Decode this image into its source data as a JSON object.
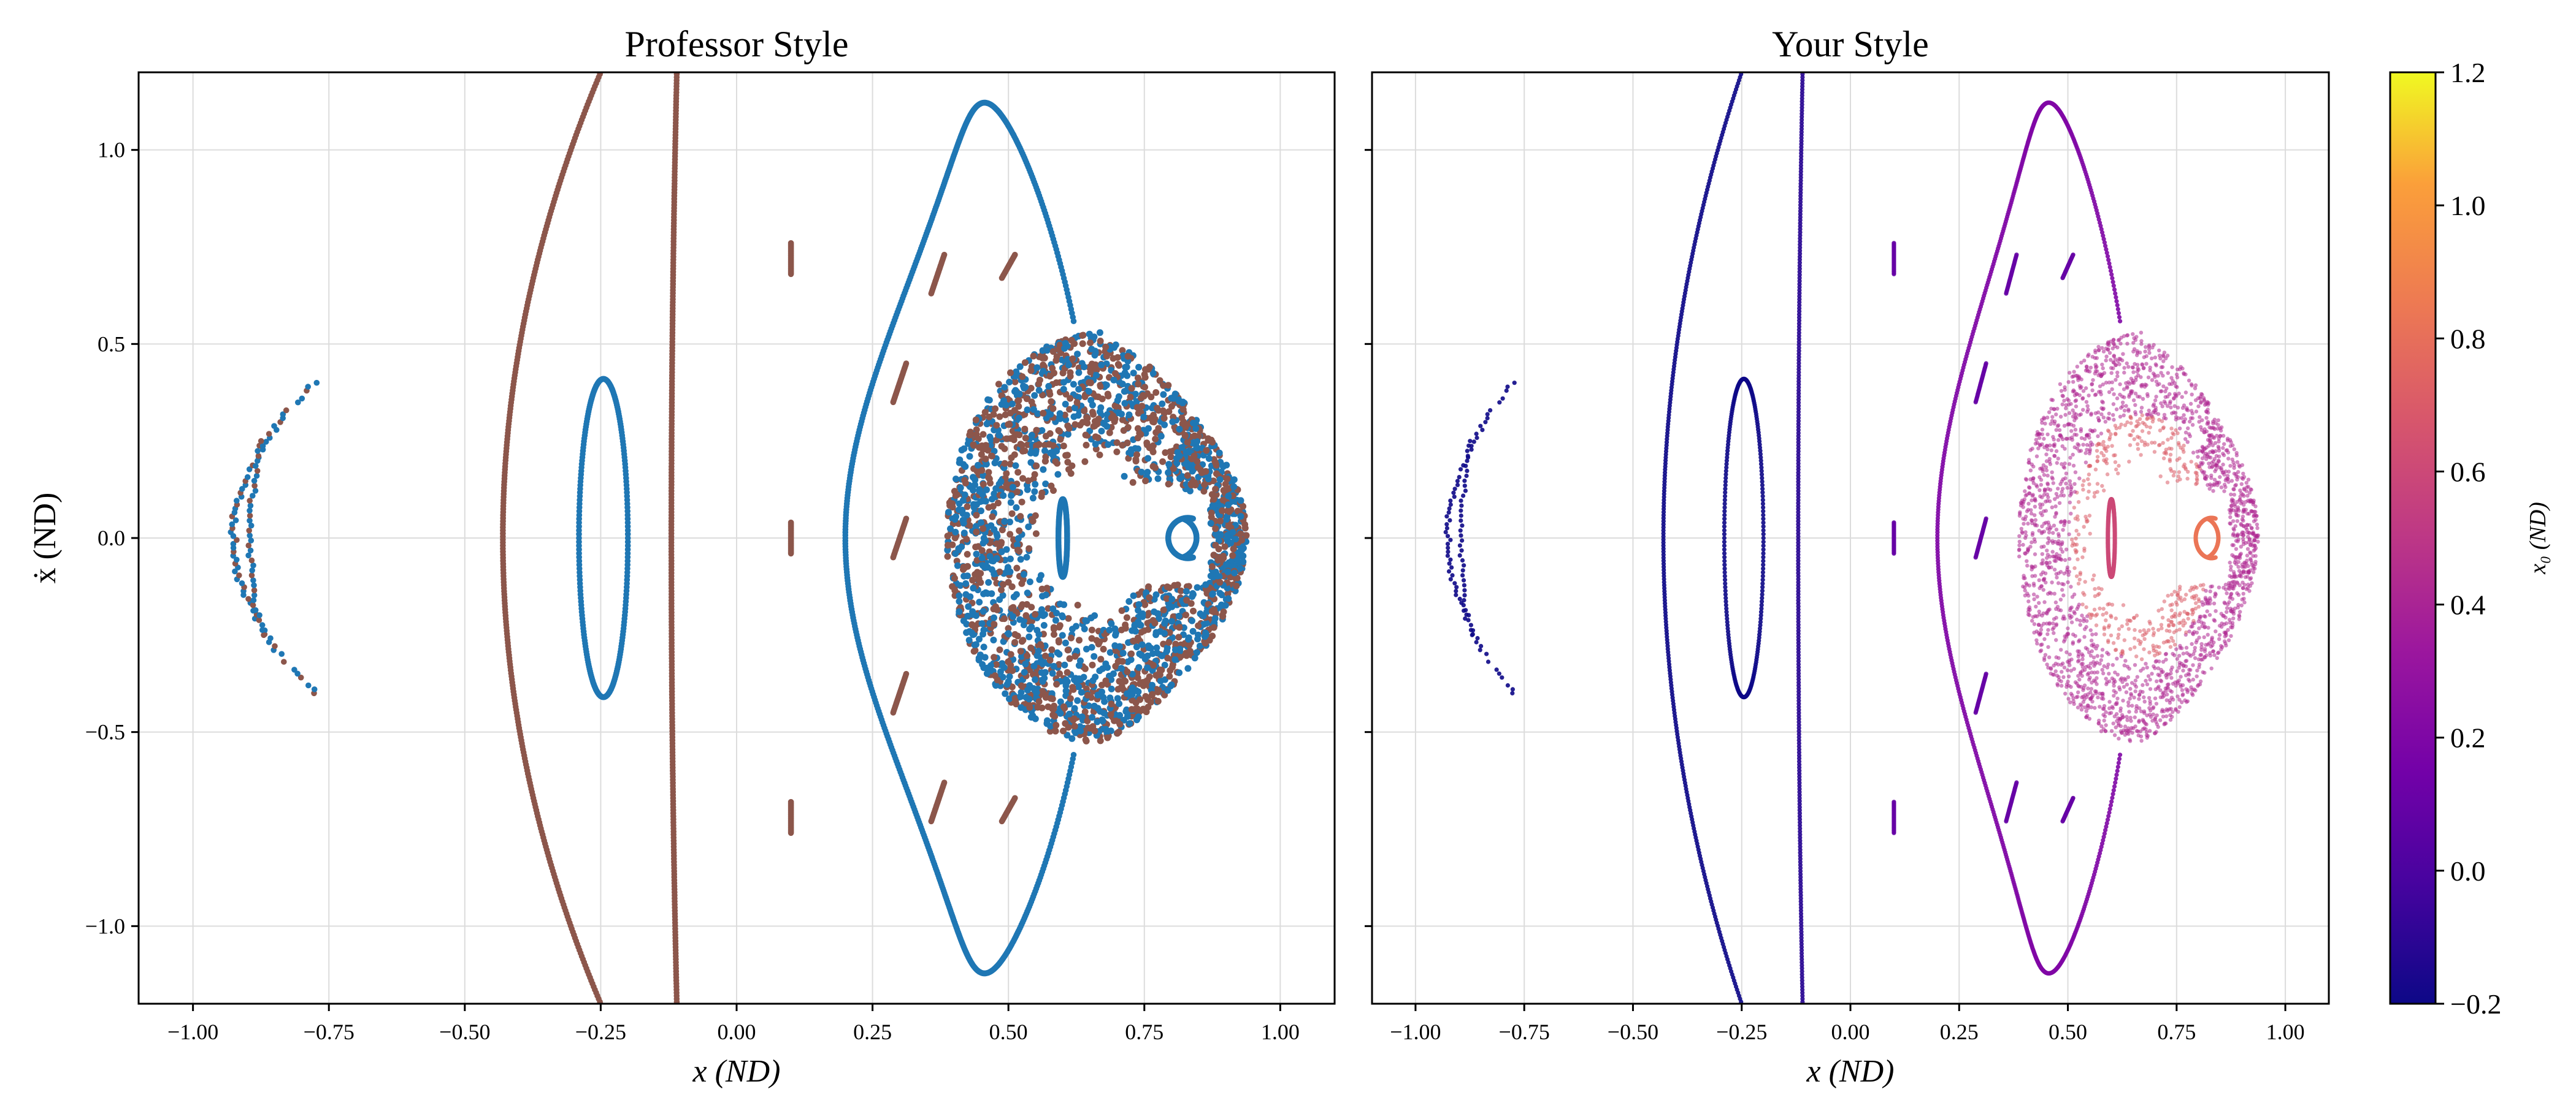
{
  "chart_data": [
    {
      "type": "scatter",
      "title": "Professor Style",
      "xlabel": "x (ND)",
      "ylabel": "ẋ (ND)",
      "xlim": [
        -1.1,
        1.1
      ],
      "ylim": [
        -1.2,
        1.2
      ],
      "xticks": [
        "−1.00",
        "−0.75",
        "−0.50",
        "−0.25",
        "0.00",
        "0.25",
        "0.50",
        "0.75",
        "1.00"
      ],
      "yticks": [
        "−1.0",
        "−0.5",
        "0.0",
        "0.5",
        "1.0"
      ],
      "grid": true,
      "colors": [
        "#1f77b4",
        "#8c564b"
      ],
      "series": [
        {
          "kind": "hyperbola",
          "vertex": -0.925,
          "height": 0.4,
          "open_to": 0.15,
          "x0": -0.925,
          "style": "sparse"
        },
        {
          "kind": "open-curve",
          "x_at_zero": -0.43,
          "x_at_top": -0.25,
          "x0": -0.43
        },
        {
          "kind": "open-curve",
          "x_at_zero": -0.12,
          "x_at_top": -0.11,
          "x0": -0.12
        },
        {
          "kind": "ellipse",
          "cx": -0.245,
          "rx": 0.045,
          "ry": 0.41,
          "x0": -0.29
        },
        {
          "kind": "island-chain",
          "x": 0.1,
          "y": 0.72,
          "x0": 0.1
        },
        {
          "kind": "teardrop",
          "x_left": 0.2,
          "x_right": 0.72,
          "y_top": 1.09,
          "x0": 0.2
        },
        {
          "kind": "chaotic-sea",
          "x_left": 0.4,
          "x_right": 0.94,
          "y_max": 0.53,
          "x0": 0.42
        },
        {
          "kind": "ellipse",
          "cx": 0.6,
          "rx": 0.008,
          "ry": 0.1,
          "x0": 0.6
        },
        {
          "kind": "crescent",
          "cx": 0.83,
          "cy": 0.0,
          "r": 0.04,
          "x0": 0.83
        }
      ]
    },
    {
      "type": "scatter",
      "title": "Your Style",
      "xlabel": "x (ND)",
      "ylabel": "",
      "xlim": [
        -1.1,
        1.1
      ],
      "ylim": [
        -1.2,
        1.2
      ],
      "xticks": [
        "−1.00",
        "−0.75",
        "−0.50",
        "−0.25",
        "0.00",
        "0.25",
        "0.50",
        "0.75",
        "1.00"
      ],
      "grid": true,
      "colormap": "plasma",
      "colorbar": {
        "label": "x₀ (ND)",
        "min": -0.2,
        "max": 1.2,
        "ticks": [
          "−0.2",
          "0.0",
          "0.2",
          "0.4",
          "0.6",
          "0.8",
          "1.0",
          "1.2"
        ]
      }
    }
  ]
}
